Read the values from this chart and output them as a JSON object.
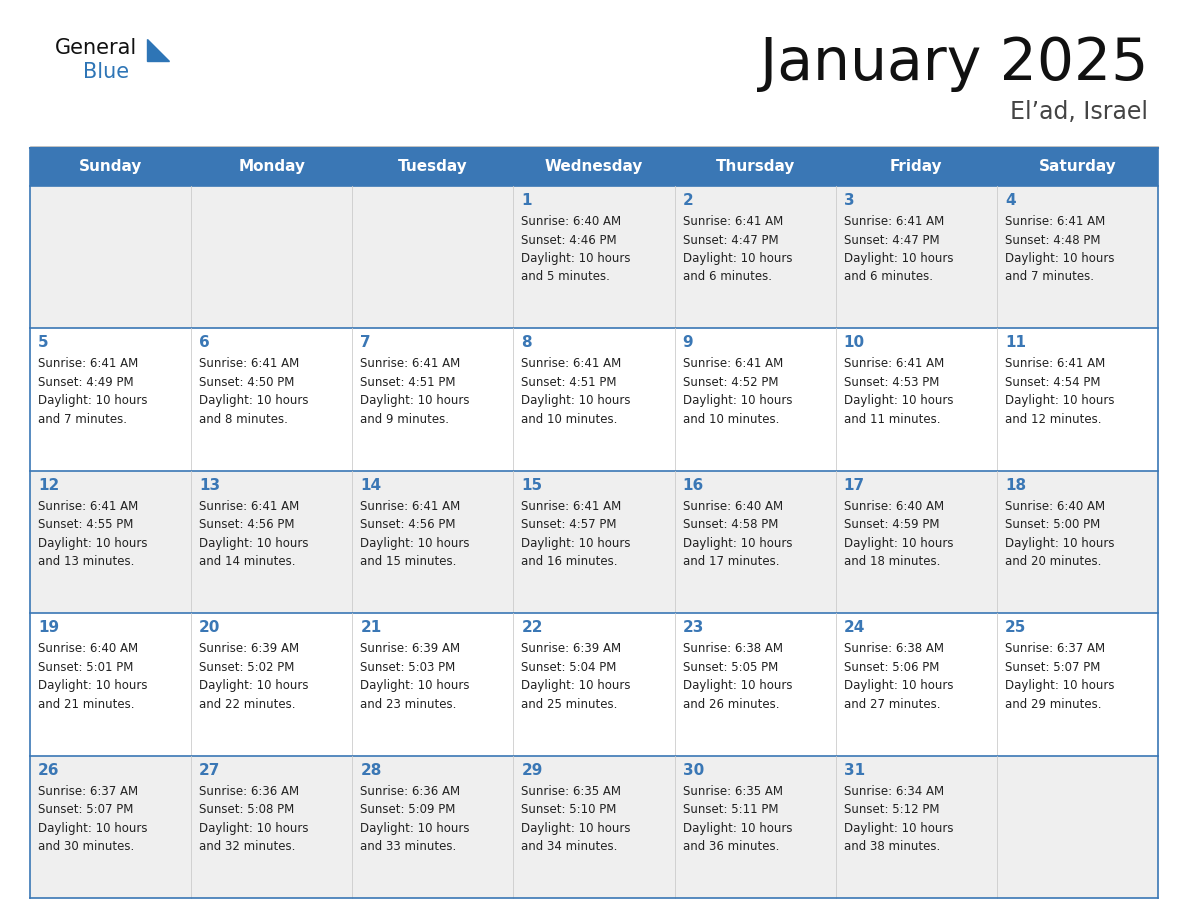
{
  "title": "January 2025",
  "subtitle": "El’ad, Israel",
  "days_of_week": [
    "Sunday",
    "Monday",
    "Tuesday",
    "Wednesday",
    "Thursday",
    "Friday",
    "Saturday"
  ],
  "header_bg": "#3a77b5",
  "header_text_color": "#ffffff",
  "cell_bg_light": "#efefef",
  "cell_bg_white": "#ffffff",
  "cell_border_top_color": "#3a77b5",
  "day_number_color": "#3a77b5",
  "text_color": "#222222",
  "title_color": "#111111",
  "subtitle_color": "#444444",
  "logo_general_color": "#111111",
  "logo_blue_color": "#2e75b6",
  "weeks": [
    [
      {
        "day": null,
        "data": null
      },
      {
        "day": null,
        "data": null
      },
      {
        "day": null,
        "data": null
      },
      {
        "day": 1,
        "data": {
          "sunrise": "6:40 AM",
          "sunset": "4:46 PM",
          "daylight": "10 hours",
          "daylight2": "and 5 minutes."
        }
      },
      {
        "day": 2,
        "data": {
          "sunrise": "6:41 AM",
          "sunset": "4:47 PM",
          "daylight": "10 hours",
          "daylight2": "and 6 minutes."
        }
      },
      {
        "day": 3,
        "data": {
          "sunrise": "6:41 AM",
          "sunset": "4:47 PM",
          "daylight": "10 hours",
          "daylight2": "and 6 minutes."
        }
      },
      {
        "day": 4,
        "data": {
          "sunrise": "6:41 AM",
          "sunset": "4:48 PM",
          "daylight": "10 hours",
          "daylight2": "and 7 minutes."
        }
      }
    ],
    [
      {
        "day": 5,
        "data": {
          "sunrise": "6:41 AM",
          "sunset": "4:49 PM",
          "daylight": "10 hours",
          "daylight2": "and 7 minutes."
        }
      },
      {
        "day": 6,
        "data": {
          "sunrise": "6:41 AM",
          "sunset": "4:50 PM",
          "daylight": "10 hours",
          "daylight2": "and 8 minutes."
        }
      },
      {
        "day": 7,
        "data": {
          "sunrise": "6:41 AM",
          "sunset": "4:51 PM",
          "daylight": "10 hours",
          "daylight2": "and 9 minutes."
        }
      },
      {
        "day": 8,
        "data": {
          "sunrise": "6:41 AM",
          "sunset": "4:51 PM",
          "daylight": "10 hours",
          "daylight2": "and 10 minutes."
        }
      },
      {
        "day": 9,
        "data": {
          "sunrise": "6:41 AM",
          "sunset": "4:52 PM",
          "daylight": "10 hours",
          "daylight2": "and 10 minutes."
        }
      },
      {
        "day": 10,
        "data": {
          "sunrise": "6:41 AM",
          "sunset": "4:53 PM",
          "daylight": "10 hours",
          "daylight2": "and 11 minutes."
        }
      },
      {
        "day": 11,
        "data": {
          "sunrise": "6:41 AM",
          "sunset": "4:54 PM",
          "daylight": "10 hours",
          "daylight2": "and 12 minutes."
        }
      }
    ],
    [
      {
        "day": 12,
        "data": {
          "sunrise": "6:41 AM",
          "sunset": "4:55 PM",
          "daylight": "10 hours",
          "daylight2": "and 13 minutes."
        }
      },
      {
        "day": 13,
        "data": {
          "sunrise": "6:41 AM",
          "sunset": "4:56 PM",
          "daylight": "10 hours",
          "daylight2": "and 14 minutes."
        }
      },
      {
        "day": 14,
        "data": {
          "sunrise": "6:41 AM",
          "sunset": "4:56 PM",
          "daylight": "10 hours",
          "daylight2": "and 15 minutes."
        }
      },
      {
        "day": 15,
        "data": {
          "sunrise": "6:41 AM",
          "sunset": "4:57 PM",
          "daylight": "10 hours",
          "daylight2": "and 16 minutes."
        }
      },
      {
        "day": 16,
        "data": {
          "sunrise": "6:40 AM",
          "sunset": "4:58 PM",
          "daylight": "10 hours",
          "daylight2": "and 17 minutes."
        }
      },
      {
        "day": 17,
        "data": {
          "sunrise": "6:40 AM",
          "sunset": "4:59 PM",
          "daylight": "10 hours",
          "daylight2": "and 18 minutes."
        }
      },
      {
        "day": 18,
        "data": {
          "sunrise": "6:40 AM",
          "sunset": "5:00 PM",
          "daylight": "10 hours",
          "daylight2": "and 20 minutes."
        }
      }
    ],
    [
      {
        "day": 19,
        "data": {
          "sunrise": "6:40 AM",
          "sunset": "5:01 PM",
          "daylight": "10 hours",
          "daylight2": "and 21 minutes."
        }
      },
      {
        "day": 20,
        "data": {
          "sunrise": "6:39 AM",
          "sunset": "5:02 PM",
          "daylight": "10 hours",
          "daylight2": "and 22 minutes."
        }
      },
      {
        "day": 21,
        "data": {
          "sunrise": "6:39 AM",
          "sunset": "5:03 PM",
          "daylight": "10 hours",
          "daylight2": "and 23 minutes."
        }
      },
      {
        "day": 22,
        "data": {
          "sunrise": "6:39 AM",
          "sunset": "5:04 PM",
          "daylight": "10 hours",
          "daylight2": "and 25 minutes."
        }
      },
      {
        "day": 23,
        "data": {
          "sunrise": "6:38 AM",
          "sunset": "5:05 PM",
          "daylight": "10 hours",
          "daylight2": "and 26 minutes."
        }
      },
      {
        "day": 24,
        "data": {
          "sunrise": "6:38 AM",
          "sunset": "5:06 PM",
          "daylight": "10 hours",
          "daylight2": "and 27 minutes."
        }
      },
      {
        "day": 25,
        "data": {
          "sunrise": "6:37 AM",
          "sunset": "5:07 PM",
          "daylight": "10 hours",
          "daylight2": "and 29 minutes."
        }
      }
    ],
    [
      {
        "day": 26,
        "data": {
          "sunrise": "6:37 AM",
          "sunset": "5:07 PM",
          "daylight": "10 hours",
          "daylight2": "and 30 minutes."
        }
      },
      {
        "day": 27,
        "data": {
          "sunrise": "6:36 AM",
          "sunset": "5:08 PM",
          "daylight": "10 hours",
          "daylight2": "and 32 minutes."
        }
      },
      {
        "day": 28,
        "data": {
          "sunrise": "6:36 AM",
          "sunset": "5:09 PM",
          "daylight": "10 hours",
          "daylight2": "and 33 minutes."
        }
      },
      {
        "day": 29,
        "data": {
          "sunrise": "6:35 AM",
          "sunset": "5:10 PM",
          "daylight": "10 hours",
          "daylight2": "and 34 minutes."
        }
      },
      {
        "day": 30,
        "data": {
          "sunrise": "6:35 AM",
          "sunset": "5:11 PM",
          "daylight": "10 hours",
          "daylight2": "and 36 minutes."
        }
      },
      {
        "day": 31,
        "data": {
          "sunrise": "6:34 AM",
          "sunset": "5:12 PM",
          "daylight": "10 hours",
          "daylight2": "and 38 minutes."
        }
      },
      {
        "day": null,
        "data": null
      }
    ]
  ]
}
